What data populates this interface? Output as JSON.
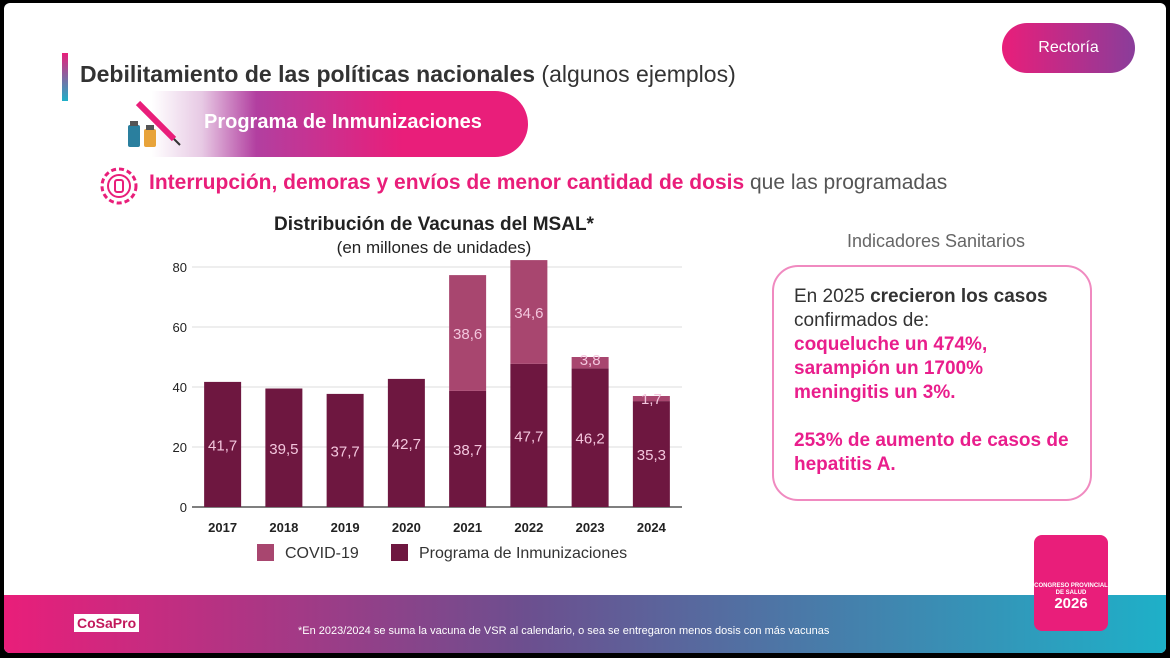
{
  "header": {
    "title_bold": "Debilitamiento de las políticas nacionales",
    "title_rest": " (algunos ejemplos)",
    "rectoria": "Rectoría"
  },
  "program": {
    "label": "Programa de Inmunizaciones"
  },
  "subtitle": {
    "bold": "Interrupción, demoras y envíos de menor cantidad de dosis",
    "rest": " que las programadas"
  },
  "indicators": {
    "title": "Indicadores Sanitarios",
    "intro": "En 2025 ",
    "intro_bold": "crecieron los casos",
    "intro2": " confirmados de:",
    "items": [
      "coqueluche un 474%,",
      "sarampión un 1700%",
      "meningitis un 3%."
    ],
    "extra": "253% de aumento de casos de hepatitis A."
  },
  "footer": {
    "footnote": "*En 2023/2024 se suma la vacuna de VSR al calendario, o sea se entregaron menos dosis con más vacunas",
    "logo": "CoSaPro",
    "badge_small": "CONGRESO PROVINCIAL DE SALUD",
    "badge_year": "2026"
  },
  "chart_data": {
    "type": "bar",
    "stacked": true,
    "title": "Distribución de Vacunas del MSAL*",
    "subtitle": "(en millones de unidades)",
    "categories": [
      "2017",
      "2018",
      "2019",
      "2020",
      "2021",
      "2022",
      "2023",
      "2024"
    ],
    "series": [
      {
        "name": "Programa de Inmunizaciones",
        "color": "#6e1740",
        "values": [
          41.7,
          39.5,
          37.7,
          42.7,
          38.7,
          47.7,
          46.2,
          35.3
        ],
        "labels": [
          "41,7",
          "39,5",
          "37,7",
          "42,7",
          "38,7",
          "47,7",
          "46,2",
          "35,3"
        ]
      },
      {
        "name": "COVID-19",
        "color": "#a8466f",
        "values": [
          0,
          0,
          0,
          0,
          38.6,
          34.6,
          3.8,
          1.7
        ],
        "labels": [
          "",
          "",
          "",
          "",
          "38,6",
          "34,6",
          "3,8",
          "1,7"
        ]
      }
    ],
    "ylim": [
      0,
      80
    ],
    "yticks": [
      0,
      20,
      40,
      60,
      80
    ],
    "grid": true,
    "legend": "bottom",
    "legend_order": [
      "COVID-19",
      "Programa de Inmunizaciones"
    ]
  }
}
